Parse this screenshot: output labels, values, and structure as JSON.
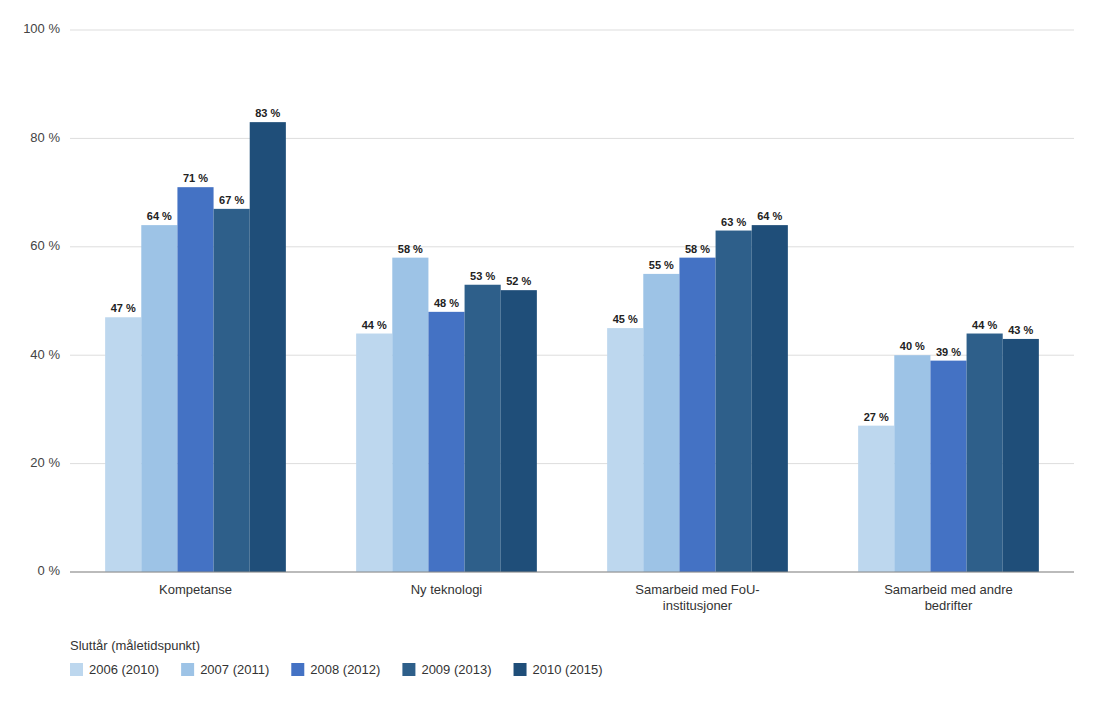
{
  "chart_data": {
    "type": "bar",
    "categories": [
      "Kompetanse",
      "Ny teknologi",
      "Samarbeid med FoU-\ninstitusjoner",
      "Samarbeid med andre\nbedrifter"
    ],
    "series": [
      {
        "name": "2006 (2010)",
        "color": "#bdd7ee",
        "values": [
          47,
          44,
          45,
          27
        ],
        "value_labels": [
          "47 %",
          "44 %",
          "45 %",
          "27 %"
        ]
      },
      {
        "name": "2007 (2011)",
        "color": "#9dc3e6",
        "values": [
          64,
          58,
          55,
          40
        ],
        "value_labels": [
          "64 %",
          "58 %",
          "55 %",
          "40 %"
        ]
      },
      {
        "name": "2008 (2012)",
        "color": "#4472c4",
        "values": [
          71,
          48,
          58,
          39
        ],
        "value_labels": [
          "71 %",
          "48 %",
          "58 %",
          "39 %"
        ]
      },
      {
        "name": "2009 (2013)",
        "color": "#2e5f8a",
        "values": [
          67,
          53,
          63,
          44
        ],
        "value_labels": [
          "67 %",
          "53 %",
          "63 %",
          "44 %"
        ]
      },
      {
        "name": "2010 (2015)",
        "color": "#1f4e79",
        "values": [
          83,
          52,
          64,
          43
        ],
        "value_labels": [
          "83 %",
          "52 %",
          "64 %",
          "43 %"
        ]
      }
    ],
    "ylim": [
      0,
      100
    ],
    "yticks": [
      {
        "value": 0,
        "label": "0 %"
      },
      {
        "value": 20,
        "label": "20 %"
      },
      {
        "value": 40,
        "label": "40 %"
      },
      {
        "value": 60,
        "label": "60 %"
      },
      {
        "value": 80,
        "label": "80 %"
      },
      {
        "value": 100,
        "label": "100 %"
      }
    ],
    "grid": true,
    "data_labels": true,
    "legend": "bottom",
    "legend_title": "Sluttår (måletidspunkt)"
  }
}
